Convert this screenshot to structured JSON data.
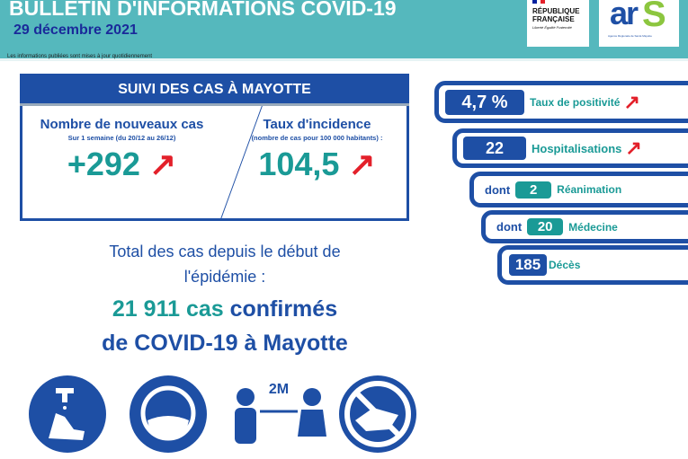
{
  "header": {
    "title": "BULLETIN D'INFORMATIONS COVID-19",
    "date": "29 décembre 2021",
    "note": "Les informations publiées sont mises à jour quotidiennement",
    "logo_rf": {
      "line1": "RÉPUBLIQUE",
      "line2": "FRANÇAISE",
      "motto": "Liberté Égalité Fraternité"
    },
    "logo_ars": {
      "mark": "ars",
      "subtitle": "Agence Régionale de Santé Mayotte"
    }
  },
  "panel": {
    "title": "SUIVI DES CAS À MAYOTTE",
    "new_cases": {
      "title": "Nombre de nouveaux cas",
      "subtitle": "Sur 1 semaine (du 20/12 au 26/12)",
      "value": "+292",
      "trend": "up"
    },
    "incidence": {
      "title": "Taux d'incidence",
      "subtitle": "(nombre de cas pour 100 000 habitants) :",
      "value": "104,5",
      "trend": "up"
    }
  },
  "total": {
    "line1": "Total des cas depuis le début de",
    "line2": "l'épidémie :",
    "count": "21 911 cas",
    "confirmed": "confirmés",
    "line4": "de COVID-19 à Mayotte"
  },
  "stats": [
    {
      "value": "4,7 %",
      "label": "Taux de positivité",
      "trend": "up"
    },
    {
      "value": "22",
      "label": "Hospitalisations",
      "trend": "up"
    },
    {
      "prefix": "dont",
      "value": "2",
      "label": "Réanimation"
    },
    {
      "prefix": "dont",
      "value": "20",
      "label": "Médecine"
    },
    {
      "value": "185",
      "label": "Décès"
    }
  ],
  "gestures": {
    "distance": "2M",
    "icons": [
      "handwash-icon",
      "mask-icon",
      "distancing-icon",
      "no-handshake-icon"
    ]
  },
  "colors": {
    "teal": "#55b8bd",
    "blue": "#1e4fa5",
    "green_text": "#1a9a96",
    "red": "#e3202a"
  }
}
